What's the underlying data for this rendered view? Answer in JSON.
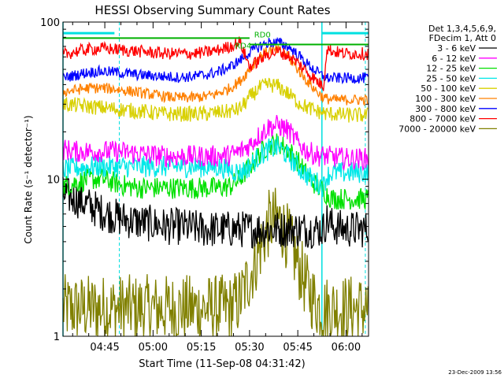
{
  "chart_data": {
    "type": "line",
    "title": "HESSI Observing Summary Count Rates",
    "xlabel": "Start Time (11-Sep-08 04:31:42)",
    "ylabel": "Count Rate (s⁻¹ detector⁻¹)",
    "yscale": "log",
    "ylim": [
      1,
      100
    ],
    "xlim": [
      272,
      367
    ],
    "x_ticks": [
      {
        "minute": 285,
        "label": "04:45"
      },
      {
        "minute": 300,
        "label": "05:00"
      },
      {
        "minute": 315,
        "label": "05:15"
      },
      {
        "minute": 330,
        "label": "05:30"
      },
      {
        "minute": 345,
        "label": "05:45"
      },
      {
        "minute": 360,
        "label": "06:00"
      }
    ],
    "y_ticks": [
      {
        "value": 1,
        "label": "1"
      },
      {
        "value": 10,
        "label": "10"
      },
      {
        "value": 100,
        "label": "100"
      }
    ],
    "legend": {
      "placement": "right",
      "header": [
        "Det 1,3,4,5,6,9,",
        "FDecim 1, Att 0"
      ],
      "entries": [
        {
          "label": "3 - 6 keV",
          "color": "#000000"
        },
        {
          "label": "6 - 12 keV",
          "color": "#ff00ff"
        },
        {
          "label": "12 - 25 keV",
          "color": "#00e000"
        },
        {
          "label": "25 - 50 keV",
          "color": "#00e8e8"
        },
        {
          "label": "50 - 100 keV",
          "color": "#d8d000"
        },
        {
          "label": "100 - 300 keV",
          "color": "#ff8000"
        },
        {
          "label": "300 - 800 keV",
          "color": "#0000ff"
        },
        {
          "label": "800 - 7000 keV",
          "color": "#ff0000"
        },
        {
          "label": "7000 - 20000 keV",
          "color": "#808000"
        }
      ]
    },
    "x": [
      272,
      276,
      280,
      284,
      288,
      292,
      296,
      300,
      304,
      308,
      312,
      316,
      320,
      324,
      327,
      330,
      333,
      336,
      339,
      342,
      345,
      348,
      351,
      353,
      354,
      356,
      360,
      364,
      367
    ],
    "series": [
      {
        "name": "3 - 6 keV",
        "color": "#000000",
        "values": [
          8,
          7.5,
          6.8,
          6.2,
          5.8,
          5.5,
          5.3,
          5.2,
          5.0,
          5.0,
          4.9,
          4.8,
          4.8,
          4.8,
          4.8,
          4.8,
          4.8,
          4.8,
          4.8,
          4.8,
          4.8,
          4.8,
          4.8,
          4.8,
          5.5,
          5.0,
          4.8,
          4.8,
          4.8
        ]
      },
      {
        "name": "6 - 12 keV",
        "color": "#ff00ff",
        "values": [
          15.5,
          15,
          15,
          15,
          15,
          14.8,
          14.5,
          14.2,
          14,
          14,
          14,
          14,
          14,
          14.2,
          15,
          16.5,
          19,
          21.5,
          22,
          20.5,
          17,
          15,
          14.2,
          14,
          14,
          13.8,
          13.5,
          13.5,
          13.5
        ]
      },
      {
        "name": "12 - 25 keV",
        "color": "#00e000",
        "values": [
          9,
          9.5,
          10,
          10,
          9.5,
          9,
          8.8,
          8.8,
          8.8,
          8.8,
          8.8,
          8.8,
          8.8,
          9,
          10,
          12,
          14.5,
          16.5,
          17,
          15.5,
          13,
          10.5,
          9,
          8.5,
          8,
          7.5,
          7.5,
          7.5,
          7.5
        ]
      },
      {
        "name": "25 - 50 keV",
        "color": "#00e8e8",
        "values": [
          11.5,
          11.8,
          12,
          12,
          12,
          12,
          12,
          12,
          12,
          12,
          12,
          12,
          12,
          11.5,
          11,
          12,
          14,
          15.5,
          16,
          14,
          12,
          10.5,
          9.5,
          9,
          10.5,
          11,
          11,
          11,
          11
        ]
      },
      {
        "name": "50 - 100 keV",
        "color": "#d8d000",
        "values": [
          30,
          29.5,
          29,
          28.5,
          28,
          27.5,
          27,
          26.5,
          26,
          26,
          26,
          26,
          26.5,
          27,
          28,
          33,
          38,
          40,
          39,
          35,
          31,
          28.5,
          27,
          26.5,
          26,
          26,
          25.5,
          25.5,
          25.5
        ]
      },
      {
        "name": "100 - 300 keV",
        "color": "#ff8000",
        "values": [
          36,
          37,
          38,
          38,
          37.5,
          36.5,
          35.5,
          34.5,
          33.5,
          33,
          33,
          33.5,
          35,
          38,
          42,
          50,
          60,
          66,
          66,
          60,
          50,
          42,
          36,
          33,
          32.5,
          32,
          32,
          32,
          32
        ]
      },
      {
        "name": "300 - 800 keV",
        "color": "#0000ff",
        "values": [
          44,
          46,
          48,
          48.5,
          48,
          47,
          46,
          45.5,
          45,
          44.5,
          45,
          46,
          48,
          52,
          57,
          64,
          70,
          74,
          74,
          70,
          62,
          54,
          48,
          45,
          44,
          44,
          44,
          44,
          44
        ]
      },
      {
        "name": "800 - 7000 keV",
        "color": "#ff0000",
        "values": [
          62,
          65,
          67,
          68,
          67,
          66,
          65,
          64,
          63,
          63,
          63,
          64,
          66,
          70,
          75,
          52,
          57,
          63,
          65,
          61,
          55,
          48,
          42,
          39,
          68,
          65,
          63,
          63,
          63
        ]
      },
      {
        "name": "7000 - 20000 keV",
        "color": "#808000",
        "values": [
          1.5,
          1.5,
          1.5,
          1.5,
          1.5,
          1.5,
          1.5,
          1.5,
          1.5,
          1.5,
          1.5,
          1.5,
          1.5,
          1.5,
          1.7,
          2.4,
          3.5,
          5.2,
          5.6,
          4.2,
          2.9,
          2,
          1.6,
          1.5,
          1.5,
          1.5,
          1.5,
          1.5,
          1.5
        ]
      }
    ],
    "ref_lines": [
      {
        "color": "#00b000",
        "x": [
          272,
          330
        ],
        "value": 79
      },
      {
        "color": "#00b000",
        "x": [
          330,
          367
        ],
        "value": 72
      }
    ],
    "annotations": [
      {
        "text": "RD4",
        "x": 328,
        "y": 68,
        "color": "#00b000"
      },
      {
        "text": "RD0",
        "x": 334,
        "y": 80,
        "color": "#00b000"
      }
    ],
    "cyan_vlines_solid": [
      272,
      352.5
    ],
    "cyan_vlines_dashed": [
      289.5,
      366
    ],
    "cyan_hbars": [
      {
        "x": [
          272,
          288
        ],
        "value": 85
      },
      {
        "x": [
          352.5,
          367
        ],
        "value": 85
      }
    ],
    "footer_date": "23-Dec-2009 13:56"
  }
}
